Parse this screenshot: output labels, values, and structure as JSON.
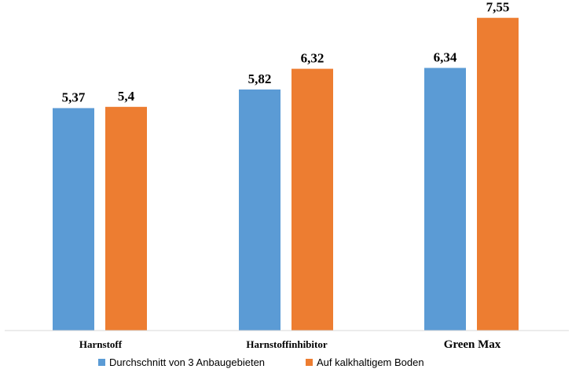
{
  "chart_data": {
    "type": "bar",
    "title": "",
    "xlabel": "",
    "ylabel": "",
    "categories": [
      "Harnstoff",
      "Harnstoffinhibitor",
      "Green Max"
    ],
    "series": [
      {
        "name": "Durchschnitt von 3 Anbaugebieten",
        "color": "#5b9bd5",
        "values": [
          5.37,
          5.82,
          6.34
        ],
        "labels": [
          "5,37",
          "5,82",
          "6,34"
        ]
      },
      {
        "name": "Auf kalkhaltigem Boden",
        "color": "#ed7d31",
        "values": [
          5.4,
          6.32,
          7.55
        ],
        "labels": [
          "5,4",
          "6,32",
          "7,55"
        ]
      }
    ],
    "ylim": [
      0,
      7.98
    ],
    "grid": false,
    "y_axis_visible": false,
    "legend": "bottom"
  }
}
